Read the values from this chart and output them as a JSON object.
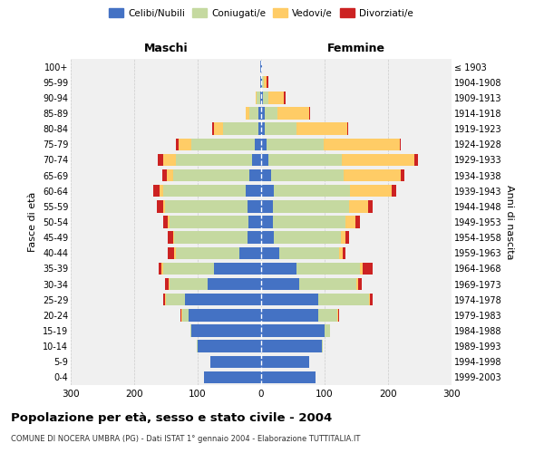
{
  "age_groups": [
    "0-4",
    "5-9",
    "10-14",
    "15-19",
    "20-24",
    "25-29",
    "30-34",
    "35-39",
    "40-44",
    "45-49",
    "50-54",
    "55-59",
    "60-64",
    "65-69",
    "70-74",
    "75-79",
    "80-84",
    "85-89",
    "90-94",
    "95-99",
    "100+"
  ],
  "birth_years": [
    "1999-2003",
    "1994-1998",
    "1989-1993",
    "1984-1988",
    "1979-1983",
    "1974-1978",
    "1969-1973",
    "1964-1968",
    "1959-1963",
    "1954-1958",
    "1949-1953",
    "1944-1948",
    "1939-1943",
    "1934-1938",
    "1929-1933",
    "1924-1928",
    "1919-1923",
    "1914-1918",
    "1909-1913",
    "1904-1908",
    "≤ 1903"
  ],
  "maschi": {
    "celibi": [
      90,
      80,
      100,
      110,
      115,
      120,
      85,
      75,
      35,
      22,
      20,
      22,
      25,
      18,
      15,
      10,
      5,
      4,
      2,
      1,
      1
    ],
    "coniugati": [
      0,
      0,
      1,
      2,
      10,
      30,
      60,
      80,
      100,
      115,
      125,
      130,
      130,
      120,
      120,
      100,
      55,
      15,
      5,
      1,
      0
    ],
    "vedovi": [
      0,
      0,
      0,
      0,
      1,
      1,
      1,
      2,
      2,
      2,
      2,
      3,
      5,
      10,
      20,
      20,
      15,
      5,
      1,
      0,
      0
    ],
    "divorziati": [
      0,
      0,
      0,
      0,
      1,
      3,
      5,
      5,
      10,
      8,
      8,
      10,
      10,
      8,
      8,
      5,
      2,
      0,
      0,
      0,
      0
    ]
  },
  "femmine": {
    "nubili": [
      85,
      75,
      95,
      100,
      90,
      90,
      60,
      55,
      28,
      20,
      18,
      18,
      20,
      15,
      12,
      8,
      5,
      5,
      3,
      2,
      1
    ],
    "coniugate": [
      0,
      1,
      2,
      8,
      30,
      80,
      90,
      100,
      95,
      105,
      115,
      120,
      120,
      115,
      115,
      90,
      50,
      20,
      8,
      2,
      0
    ],
    "vedove": [
      0,
      0,
      0,
      0,
      1,
      2,
      3,
      5,
      5,
      8,
      15,
      30,
      65,
      90,
      115,
      120,
      80,
      50,
      25,
      5,
      0
    ],
    "divorziate": [
      0,
      0,
      0,
      0,
      2,
      4,
      5,
      15,
      5,
      5,
      8,
      8,
      8,
      5,
      5,
      2,
      2,
      2,
      2,
      2,
      0
    ]
  },
  "colors": {
    "celibi": "#4472C4",
    "coniugati": "#C5D9A0",
    "vedovi": "#FFCC66",
    "divorziati": "#CC2222"
  },
  "title": "Popolazione per età, sesso e stato civile - 2004",
  "subtitle": "COMUNE DI NOCERA UMBRA (PG) - Dati ISTAT 1° gennaio 2004 - Elaborazione TUTTITALIA.IT",
  "xlabel_left": "Maschi",
  "xlabel_right": "Femmine",
  "ylabel_left": "Fasce di età",
  "ylabel_right": "Anni di nascita",
  "xlim": 300,
  "bg_color": "#f0f0f0",
  "legend_labels": [
    "Celibi/Nubili",
    "Coniugati/e",
    "Vedovi/e",
    "Divorziati/e"
  ]
}
